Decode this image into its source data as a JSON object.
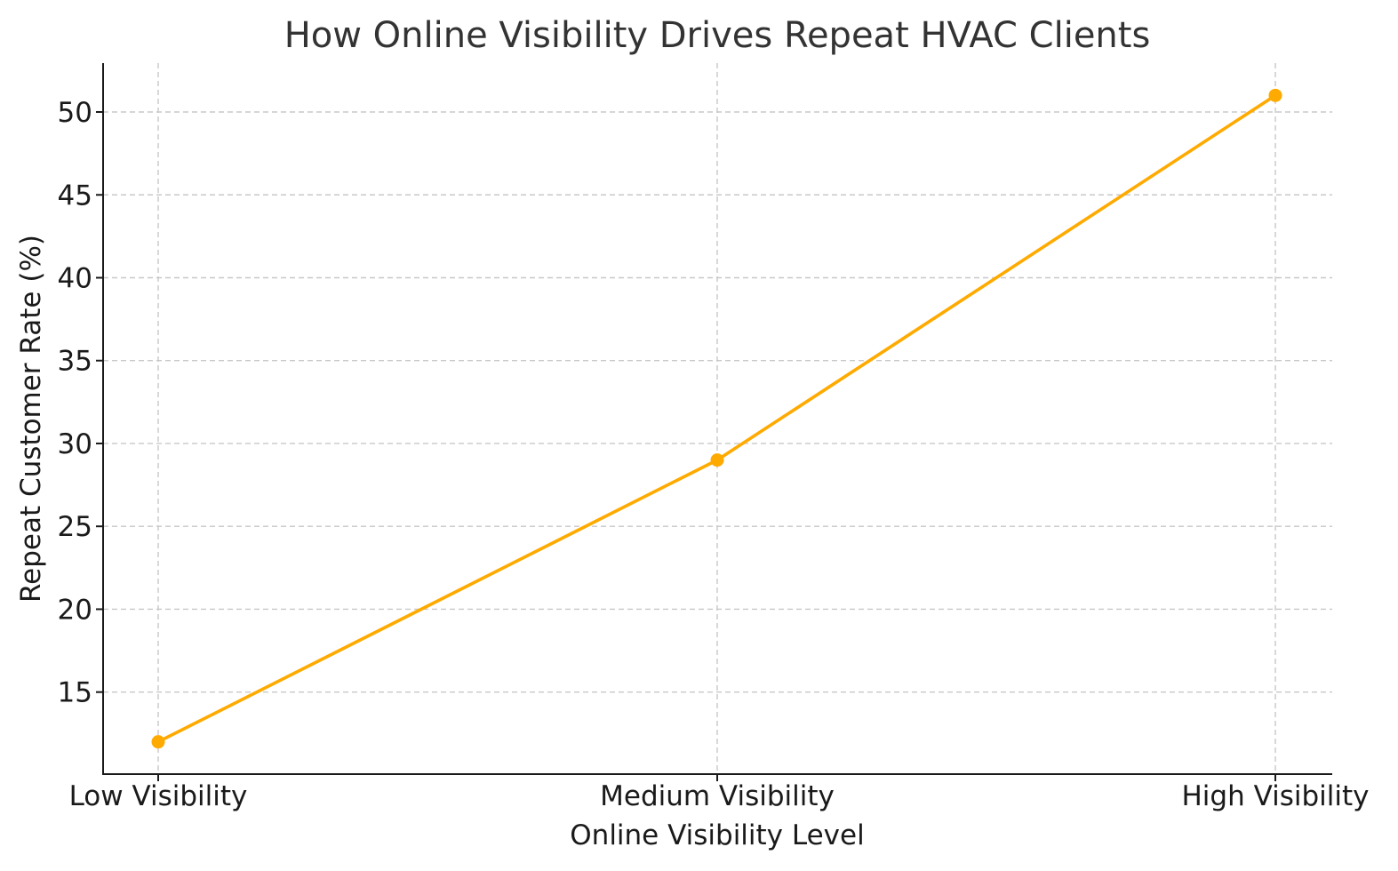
{
  "chart_data": {
    "type": "line",
    "title": "How Online Visibility Drives Repeat HVAC Clients",
    "xlabel": "Online Visibility Level",
    "ylabel": "Repeat Customer Rate (%)",
    "categories": [
      "Low Visibility",
      "Medium Visibility",
      "High Visibility"
    ],
    "series": [
      {
        "values": [
          12,
          29,
          51
        ],
        "color": "#FFAA00"
      }
    ],
    "ylim": [
      10.05,
      52.95
    ],
    "yticks": [
      15,
      20,
      25,
      30,
      35,
      40,
      45,
      50
    ],
    "grid": true,
    "marker": "circle"
  }
}
